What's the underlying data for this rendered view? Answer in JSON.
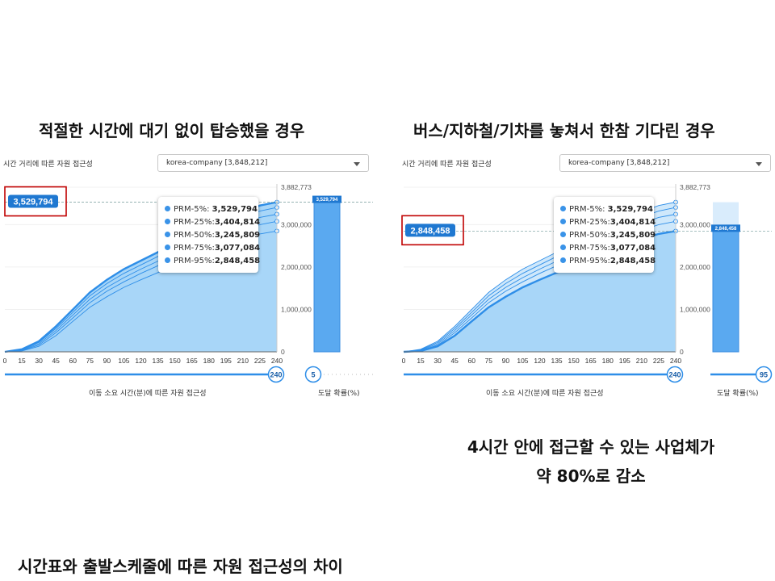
{
  "headings": {
    "left": "적절한 시간에 대기 없이 탑승했을 경우",
    "right": "버스/지하철/기차를 놓쳐서 한참 기다린 경우",
    "bottom": "시간표와 출발스케줄에 따른 자원 접근성의 차이"
  },
  "note": {
    "line1": "4시간 안에 접근할 수 있는 사업체가",
    "line2": "약 80%로 감소"
  },
  "panels": {
    "left": {
      "title": "시간 거리에 따른 자원 접근성",
      "dropdown_value": "korea-company [3,848,212]",
      "highlight_value": "3,529,794",
      "bar_value_label": "3,529,794",
      "xlabel": "이동 소요 시간(분)에 따른 자원 접근성",
      "prob_label": "도달 확률(%)",
      "time_slider": "240",
      "prob_slider": "5",
      "tooltip": [
        {
          "label": "PRM-5%:",
          "value": "3,529,794"
        },
        {
          "label": "PRM-25%:",
          "value": "3,404,814"
        },
        {
          "label": "PRM-50%:",
          "value": "3,245,809"
        },
        {
          "label": "PRM-75%:",
          "value": "3,077,084"
        },
        {
          "label": "PRM-95%:",
          "value": "2,848,458"
        }
      ]
    },
    "right": {
      "title": "시간 거리에 따른 자원 접근성",
      "dropdown_value": "korea-company [3,848,212]",
      "highlight_value": "2,848,458",
      "bar_value_label": "2,848,458",
      "xlabel": "이동 소요 시간(분)에 따른 자원 접근성",
      "prob_label": "도달 확률(%)",
      "time_slider": "240",
      "prob_slider": "95",
      "tooltip": [
        {
          "label": "PRM-5%:",
          "value": "3,529,794"
        },
        {
          "label": "PRM-25%:",
          "value": "3,404,814"
        },
        {
          "label": "PRM-50%:",
          "value": "3,245,809"
        },
        {
          "label": "PRM-75%:",
          "value": "3,077,084"
        },
        {
          "label": "PRM-95%:",
          "value": "2,848,458"
        }
      ]
    }
  },
  "colors": {
    "line": "#2e8ee8",
    "area": "#a8d6f8",
    "bar": "#5aa9f0",
    "highlight_border": "#c00000",
    "badge": "#1f78d1"
  },
  "chart_data": [
    {
      "type": "area",
      "x_ticks": [
        0,
        15,
        30,
        45,
        60,
        75,
        90,
        105,
        120,
        135,
        150,
        165,
        180,
        195,
        210,
        225,
        240
      ],
      "y_ticks": [
        0,
        1000000,
        2000000,
        3000000,
        3882773
      ],
      "y_tick_labels": [
        "0",
        "1,000,000",
        "2,000,000",
        "3,000,000",
        "3,882,773"
      ],
      "ylim": [
        0,
        3882773
      ],
      "xlim": [
        0,
        240
      ],
      "selected_series": "PRM-5%",
      "series": [
        {
          "name": "PRM-5%",
          "x": [
            0,
            15,
            30,
            45,
            60,
            75,
            90,
            105,
            120,
            135,
            150,
            165,
            180,
            195,
            210,
            225,
            240
          ],
          "y": [
            0,
            60000,
            250000,
            600000,
            1000000,
            1400000,
            1700000,
            1950000,
            2150000,
            2350000,
            2550000,
            2750000,
            2950000,
            3150000,
            3300000,
            3450000,
            3529794
          ]
        },
        {
          "name": "PRM-25%",
          "x": [
            0,
            15,
            30,
            45,
            60,
            75,
            90,
            105,
            120,
            135,
            150,
            165,
            180,
            195,
            210,
            225,
            240
          ],
          "y": [
            0,
            50000,
            220000,
            550000,
            930000,
            1320000,
            1610000,
            1850000,
            2050000,
            2250000,
            2440000,
            2640000,
            2840000,
            3030000,
            3180000,
            3320000,
            3404814
          ]
        },
        {
          "name": "PRM-50%",
          "x": [
            0,
            15,
            30,
            45,
            60,
            75,
            90,
            105,
            120,
            135,
            150,
            165,
            180,
            195,
            210,
            225,
            240
          ],
          "y": [
            0,
            40000,
            190000,
            500000,
            870000,
            1240000,
            1520000,
            1750000,
            1950000,
            2140000,
            2320000,
            2510000,
            2700000,
            2880000,
            3030000,
            3170000,
            3245809
          ]
        },
        {
          "name": "PRM-75%",
          "x": [
            0,
            15,
            30,
            45,
            60,
            75,
            90,
            105,
            120,
            135,
            150,
            165,
            180,
            195,
            210,
            225,
            240
          ],
          "y": [
            0,
            30000,
            160000,
            450000,
            800000,
            1160000,
            1430000,
            1650000,
            1850000,
            2030000,
            2200000,
            2380000,
            2560000,
            2730000,
            2870000,
            3000000,
            3077084
          ]
        },
        {
          "name": "PRM-95%",
          "x": [
            0,
            15,
            30,
            45,
            60,
            75,
            90,
            105,
            120,
            135,
            150,
            165,
            180,
            195,
            210,
            225,
            240
          ],
          "y": [
            0,
            20000,
            130000,
            380000,
            720000,
            1050000,
            1300000,
            1520000,
            1700000,
            1870000,
            2040000,
            2200000,
            2370000,
            2530000,
            2660000,
            2780000,
            2848458
          ]
        }
      ],
      "bar": {
        "category": "도달 확률(%)",
        "value": 3529794
      },
      "xlabel": "이동 소요 시간(분)에 따른 자원 접근성"
    },
    {
      "type": "area",
      "x_ticks": [
        0,
        15,
        30,
        45,
        60,
        75,
        90,
        105,
        120,
        135,
        150,
        165,
        180,
        195,
        210,
        225,
        240
      ],
      "y_ticks": [
        0,
        1000000,
        2000000,
        3000000,
        3882773
      ],
      "y_tick_labels": [
        "0",
        "1,000,000",
        "2,000,000",
        "3,000,000",
        "3,882,773"
      ],
      "ylim": [
        0,
        3882773
      ],
      "xlim": [
        0,
        240
      ],
      "selected_series": "PRM-95%",
      "series": [
        {
          "name": "PRM-5%",
          "x": [
            0,
            15,
            30,
            45,
            60,
            75,
            90,
            105,
            120,
            135,
            150,
            165,
            180,
            195,
            210,
            225,
            240
          ],
          "y": [
            0,
            60000,
            250000,
            600000,
            1000000,
            1400000,
            1700000,
            1950000,
            2150000,
            2350000,
            2550000,
            2750000,
            2950000,
            3150000,
            3300000,
            3450000,
            3529794
          ]
        },
        {
          "name": "PRM-25%",
          "x": [
            0,
            15,
            30,
            45,
            60,
            75,
            90,
            105,
            120,
            135,
            150,
            165,
            180,
            195,
            210,
            225,
            240
          ],
          "y": [
            0,
            50000,
            220000,
            550000,
            930000,
            1320000,
            1610000,
            1850000,
            2050000,
            2250000,
            2440000,
            2640000,
            2840000,
            3030000,
            3180000,
            3320000,
            3404814
          ]
        },
        {
          "name": "PRM-50%",
          "x": [
            0,
            15,
            30,
            45,
            60,
            75,
            90,
            105,
            120,
            135,
            150,
            165,
            180,
            195,
            210,
            225,
            240
          ],
          "y": [
            0,
            40000,
            190000,
            500000,
            870000,
            1240000,
            1520000,
            1750000,
            1950000,
            2140000,
            2320000,
            2510000,
            2700000,
            2880000,
            3030000,
            3170000,
            3245809
          ]
        },
        {
          "name": "PRM-75%",
          "x": [
            0,
            15,
            30,
            45,
            60,
            75,
            90,
            105,
            120,
            135,
            150,
            165,
            180,
            195,
            210,
            225,
            240
          ],
          "y": [
            0,
            30000,
            160000,
            450000,
            800000,
            1160000,
            1430000,
            1650000,
            1850000,
            2030000,
            2200000,
            2380000,
            2560000,
            2730000,
            2870000,
            3000000,
            3077084
          ]
        },
        {
          "name": "PRM-95%",
          "x": [
            0,
            15,
            30,
            45,
            60,
            75,
            90,
            105,
            120,
            135,
            150,
            165,
            180,
            195,
            210,
            225,
            240
          ],
          "y": [
            0,
            20000,
            130000,
            380000,
            720000,
            1050000,
            1300000,
            1520000,
            1700000,
            1870000,
            2040000,
            2200000,
            2370000,
            2530000,
            2660000,
            2780000,
            2848458
          ]
        }
      ],
      "bar": {
        "category": "도달 확률(%)",
        "value": 2848458
      },
      "xlabel": "이동 소요 시간(분)에 따른 자원 접근성"
    }
  ]
}
